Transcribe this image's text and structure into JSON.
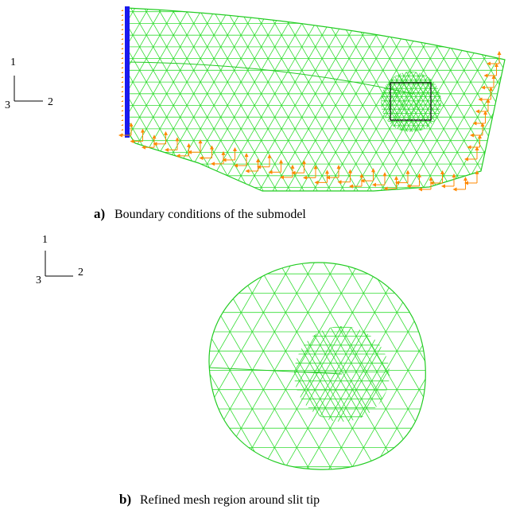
{
  "panels": [
    {
      "label": "a)",
      "caption": "Boundary conditions of the submodel",
      "axes": {
        "vertical": "1",
        "horizontal": "2",
        "normal": "3"
      }
    },
    {
      "label": "b)",
      "caption": "Refined mesh region around slit tip",
      "axes": {
        "vertical": "1",
        "horizontal": "2",
        "normal": "3"
      }
    }
  ]
}
